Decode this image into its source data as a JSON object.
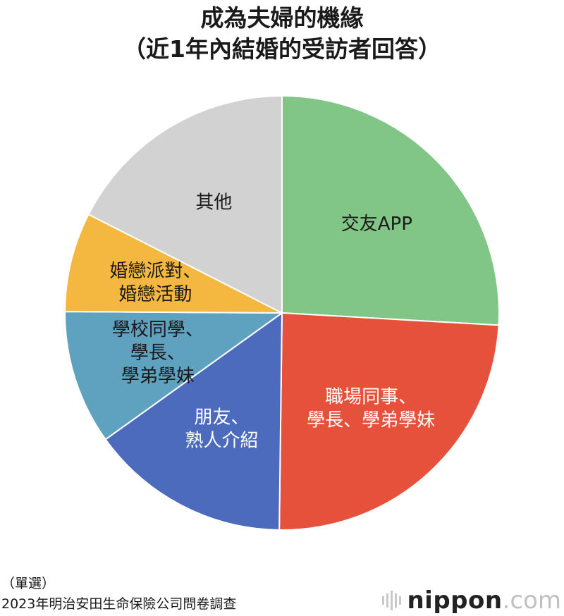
{
  "header": {
    "title_line1": "成為夫婦的機緣",
    "title_line2": "（近1年內結婚的受訪者回答）"
  },
  "chart_data": {
    "type": "pie",
    "title": "成為夫婦的機緣（近1年內結婚的受訪者回答）",
    "start_angle_deg": 0,
    "direction": "clockwise",
    "slices": [
      {
        "label_lines": [
          "交友APP"
        ],
        "value": 25.9,
        "color": "#82c687",
        "text_color": "#1a1a1a"
      },
      {
        "label_lines": [
          "職場同事、",
          "學長、學弟學妹"
        ],
        "value": 24.3,
        "color": "#e5513a",
        "text_color": "#ffffff"
      },
      {
        "label_lines": [
          "朋友、",
          "熟人介紹"
        ],
        "value": 14.9,
        "color": "#4d6bbd",
        "text_color": "#ffffff"
      },
      {
        "label_lines": [
          "學校同學、",
          "學長、",
          "學弟學妹"
        ],
        "value": 10.0,
        "color": "#5fa2c0",
        "text_color": "#1a1a1a"
      },
      {
        "label_lines": [
          "婚戀派對、",
          "婚戀活動"
        ],
        "value": 7.4,
        "color": "#f4b73f",
        "text_color": "#1a1a1a"
      },
      {
        "label_lines": [
          "其他"
        ],
        "value": 17.5,
        "color": "#d2d2d2",
        "text_color": "#1a1a1a"
      }
    ]
  },
  "footer": {
    "note": "（單選）",
    "source": "2023年明治安田生命保險公司問卷調查"
  },
  "brand": {
    "name": "nippon",
    "dot": ".",
    "tld": "com"
  }
}
